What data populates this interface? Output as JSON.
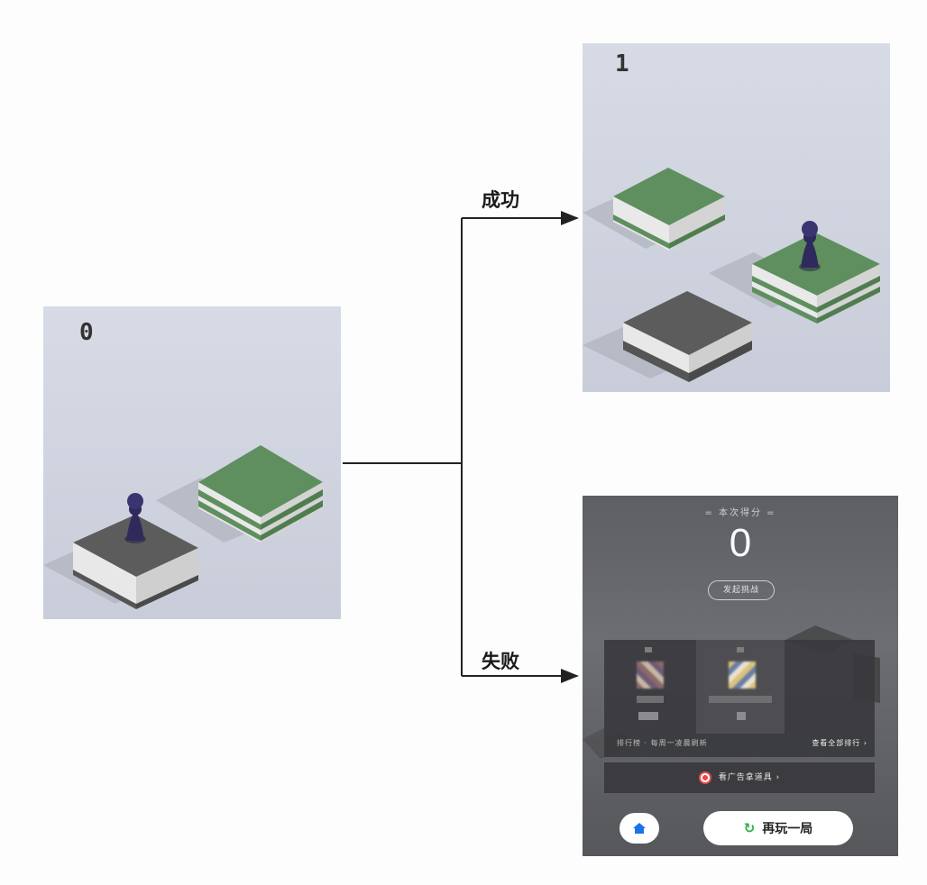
{
  "left_panel": {
    "score": "0"
  },
  "success_panel": {
    "score": "1"
  },
  "branches": {
    "success": "成功",
    "fail": "失败"
  },
  "fail_screen": {
    "title": "= 本次得分 =",
    "score": "0",
    "challenge_button": "发起挑战",
    "leaderboard_footer": "排行榜 · 每周一凌晨刷新",
    "view_all": "查看全部排行 ›",
    "ad_label": "看广告拿道具 ›",
    "replay_button": "再玩一局"
  },
  "colors": {
    "green_block": "#5f8f5f",
    "gray_block": "#5e5e5e",
    "player": "#2e2a5c",
    "success_accent": "#2bb24c",
    "home_icon": "#1a73e8"
  },
  "icons": {
    "home": "home-icon",
    "replay": "replay-icon",
    "ad": "target-icon",
    "arrow": "arrow-right-icon"
  }
}
